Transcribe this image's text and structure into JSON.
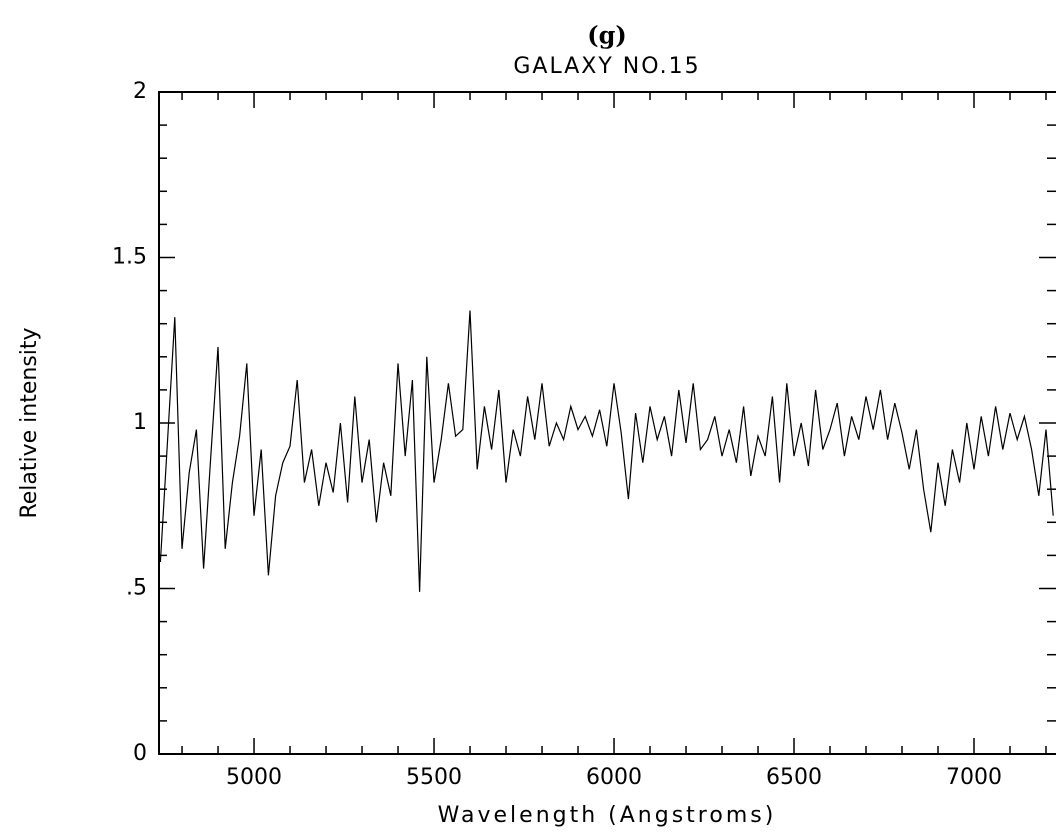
{
  "chart_data": {
    "type": "line",
    "panel_label": "(g)",
    "title": "GALAXY NO.15",
    "xlabel": "Wavelength (Angstroms)",
    "ylabel": "Relative intensity",
    "color": "#000000",
    "xlim": [
      4736,
      7225
    ],
    "ylim": [
      0,
      2
    ],
    "xticks": [
      5000,
      5500,
      6000,
      6500,
      7000
    ],
    "yticks": [
      0,
      {
        "value": 0.5,
        "label": ".5"
      },
      1,
      1.5,
      2
    ],
    "xminorticks": [
      4800,
      4900,
      5100,
      5200,
      5300,
      5400,
      5600,
      5700,
      5800,
      5900,
      6100,
      6200,
      6300,
      6400,
      6600,
      6700,
      6800,
      6900,
      7100,
      7200
    ],
    "yminorticks": [
      0.1,
      0.2,
      0.3,
      0.4,
      0.6,
      0.7,
      0.8,
      0.9,
      1.1,
      1.2,
      1.3,
      1.4,
      1.6,
      1.7,
      1.8,
      1.9
    ],
    "x": [
      4740,
      4760,
      4780,
      4800,
      4820,
      4840,
      4860,
      4880,
      4900,
      4920,
      4940,
      4960,
      4980,
      5000,
      5020,
      5040,
      5060,
      5080,
      5100,
      5120,
      5140,
      5160,
      5180,
      5200,
      5220,
      5240,
      5260,
      5280,
      5300,
      5320,
      5340,
      5360,
      5380,
      5400,
      5420,
      5440,
      5460,
      5480,
      5500,
      5520,
      5540,
      5560,
      5580,
      5600,
      5620,
      5640,
      5660,
      5680,
      5700,
      5720,
      5740,
      5760,
      5780,
      5800,
      5820,
      5840,
      5860,
      5880,
      5900,
      5920,
      5940,
      5960,
      5980,
      6000,
      6020,
      6040,
      6060,
      6080,
      6100,
      6120,
      6140,
      6160,
      6180,
      6200,
      6220,
      6240,
      6260,
      6280,
      6300,
      6320,
      6340,
      6360,
      6380,
      6400,
      6420,
      6440,
      6460,
      6480,
      6500,
      6520,
      6540,
      6560,
      6580,
      6600,
      6620,
      6640,
      6660,
      6680,
      6700,
      6720,
      6740,
      6760,
      6780,
      6800,
      6820,
      6840,
      6860,
      6880,
      6900,
      6920,
      6940,
      6960,
      6980,
      7000,
      7020,
      7040,
      7060,
      7080,
      7100,
      7120,
      7140,
      7160,
      7180,
      7200,
      7220
    ],
    "values": [
      0.58,
      0.95,
      1.32,
      0.62,
      0.85,
      0.98,
      0.56,
      0.9,
      1.23,
      0.62,
      0.82,
      0.96,
      1.18,
      0.72,
      0.92,
      0.54,
      0.78,
      0.88,
      0.93,
      1.13,
      0.82,
      0.92,
      0.75,
      0.88,
      0.79,
      1.0,
      0.76,
      1.08,
      0.82,
      0.95,
      0.7,
      0.88,
      0.78,
      1.18,
      0.9,
      1.13,
      0.49,
      1.2,
      0.82,
      0.95,
      1.12,
      0.96,
      0.98,
      1.34,
      0.86,
      1.05,
      0.92,
      1.1,
      0.82,
      0.98,
      0.9,
      1.08,
      0.95,
      1.12,
      0.93,
      1.0,
      0.95,
      1.05,
      0.98,
      1.02,
      0.96,
      1.04,
      0.93,
      1.12,
      0.97,
      0.77,
      1.03,
      0.88,
      1.05,
      0.95,
      1.02,
      0.9,
      1.1,
      0.94,
      1.12,
      0.92,
      0.95,
      1.02,
      0.9,
      0.98,
      0.88,
      1.05,
      0.84,
      0.96,
      0.9,
      1.08,
      0.82,
      1.12,
      0.9,
      1.0,
      0.87,
      1.1,
      0.92,
      0.98,
      1.06,
      0.9,
      1.02,
      0.95,
      1.08,
      0.98,
      1.1,
      0.95,
      1.06,
      0.97,
      0.86,
      0.98,
      0.8,
      0.67,
      0.88,
      0.75,
      0.92,
      0.82,
      1.0,
      0.86,
      1.02,
      0.9,
      1.05,
      0.92,
      1.03,
      0.95,
      1.02,
      0.92,
      0.78,
      0.98,
      0.72
    ]
  }
}
